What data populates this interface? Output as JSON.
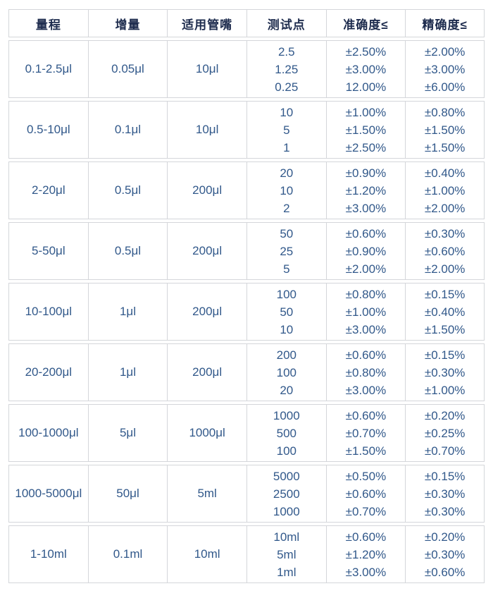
{
  "table": {
    "columns": [
      "量程",
      "增量",
      "适用管嘴",
      "测试点",
      "准确度≤",
      "精确度≤"
    ],
    "rows": [
      {
        "range": "0.1-2.5μl",
        "increment": "0.05μl",
        "tip": "10μl",
        "test_points": [
          "2.5",
          "1.25",
          "0.25"
        ],
        "accuracy": [
          "±2.50%",
          "±3.00%",
          "12.00%"
        ],
        "precision": [
          "±2.00%",
          "±3.00%",
          "±6.00%"
        ]
      },
      {
        "range": "0.5-10μl",
        "increment": "0.1μl",
        "tip": "10μl",
        "test_points": [
          "10",
          "5",
          "1"
        ],
        "accuracy": [
          "±1.00%",
          "±1.50%",
          "±2.50%"
        ],
        "precision": [
          "±0.80%",
          "±1.50%",
          "±1.50%"
        ]
      },
      {
        "range": "2-20μl",
        "increment": "0.5μl",
        "tip": "200μl",
        "test_points": [
          "20",
          "10",
          "2"
        ],
        "accuracy": [
          "±0.90%",
          "±1.20%",
          "±3.00%"
        ],
        "precision": [
          "±0.40%",
          "±1.00%",
          "±2.00%"
        ]
      },
      {
        "range": "5-50μl",
        "increment": "0.5μl",
        "tip": "200μl",
        "test_points": [
          "50",
          "25",
          "5"
        ],
        "accuracy": [
          "±0.60%",
          "±0.90%",
          "±2.00%"
        ],
        "precision": [
          "±0.30%",
          "±0.60%",
          "±2.00%"
        ]
      },
      {
        "range": "10-100μl",
        "increment": "1μl",
        "tip": "200μl",
        "test_points": [
          "100",
          "50",
          "10"
        ],
        "accuracy": [
          "±0.80%",
          "±1.00%",
          "±3.00%"
        ],
        "precision": [
          "±0.15%",
          "±0.40%",
          "±1.50%"
        ]
      },
      {
        "range": "20-200μl",
        "increment": "1μl",
        "tip": "200μl",
        "test_points": [
          "200",
          "100",
          "20"
        ],
        "accuracy": [
          "±0.60%",
          "±0.80%",
          "±3.00%"
        ],
        "precision": [
          "±0.15%",
          "±0.30%",
          "±1.00%"
        ]
      },
      {
        "range": "100-1000μl",
        "increment": "5μl",
        "tip": "1000μl",
        "test_points": [
          "1000",
          "500",
          "100"
        ],
        "accuracy": [
          "±0.60%",
          "±0.70%",
          "±1.50%"
        ],
        "precision": [
          "±0.20%",
          "±0.25%",
          "±0.70%"
        ]
      },
      {
        "range": "1000-5000μl",
        "increment": "50μl",
        "tip": "5ml",
        "test_points": [
          "5000",
          "2500",
          "1000"
        ],
        "accuracy": [
          "±0.50%",
          "±0.60%",
          "±0.70%"
        ],
        "precision": [
          "±0.15%",
          "±0.30%",
          "±0.30%"
        ]
      },
      {
        "range": "1-10ml",
        "increment": "0.1ml",
        "tip": "10ml",
        "test_points": [
          "10ml",
          "5ml",
          "1ml"
        ],
        "accuracy": [
          "±0.60%",
          "±1.20%",
          "±3.00%"
        ],
        "precision": [
          "±0.20%",
          "±0.30%",
          "±0.60%"
        ]
      }
    ]
  },
  "colors": {
    "header_text": "#1e2c4e",
    "body_text": "#31588a",
    "border": "#d4d6da",
    "background": "#ffffff"
  }
}
